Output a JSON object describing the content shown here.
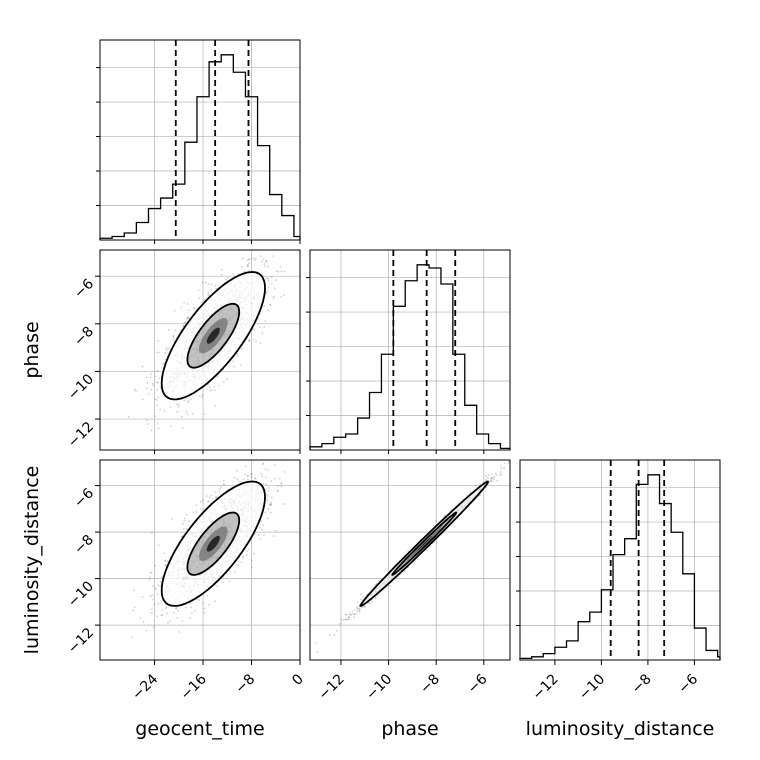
{
  "chart_data": {
    "type": "corner",
    "parameters": [
      "geocent_time",
      "phase",
      "luminosity_distance"
    ],
    "axis_labels": {
      "bottom": [
        "geocent_time",
        "phase",
        "luminosity_distance"
      ],
      "left": [
        "phase",
        "luminosity_distance"
      ]
    },
    "ranges": {
      "geocent_time": [
        -33,
        0
      ],
      "phase": [
        -13.3,
        -4.9
      ],
      "luminosity_distance": [
        -13.5,
        -4.9
      ]
    },
    "ticks": {
      "geocent_time": [
        -24,
        -16,
        -8,
        0
      ],
      "phase": [
        -12,
        -10,
        -8,
        -6
      ],
      "luminosity_distance": [
        -12,
        -10,
        -8,
        -6
      ]
    },
    "tick_labels": {
      "geocent_time": [
        "−24",
        "−16",
        "−8",
        "0"
      ],
      "phase": [
        "−12",
        "−10",
        "−8",
        "−6"
      ],
      "luminosity_distance": [
        "−12",
        "−10",
        "−8",
        "−6"
      ]
    },
    "grid": true,
    "histograms": [
      {
        "parameter": "geocent_time",
        "bins": [
          -33.0,
          -31.0,
          -29.0,
          -27.0,
          -25.0,
          -23.0,
          -21.0,
          -19.0,
          -17.0,
          -15.0,
          -13.0,
          -11.0,
          -9.0,
          -7.0,
          -5.0,
          -3.0,
          -1.0,
          0.0
        ],
        "counts": [
          0.5,
          1,
          2,
          5,
          9,
          12,
          16,
          28,
          41,
          51,
          53,
          48,
          41,
          27,
          13,
          7,
          1,
          0.5
        ],
        "quantile_lines": [
          -20.5,
          -14.0,
          -8.5
        ]
      },
      {
        "parameter": "phase",
        "bins": [
          -13.3,
          -12.8,
          -12.3,
          -11.8,
          -11.3,
          -10.8,
          -10.3,
          -9.8,
          -9.3,
          -8.8,
          -8.3,
          -7.8,
          -7.3,
          -6.8,
          -6.3,
          -5.8,
          -5.3
        ],
        "counts": [
          1,
          2,
          4,
          5,
          10,
          18,
          30,
          45,
          53,
          58,
          57,
          52,
          30,
          14,
          5,
          2,
          0.5
        ],
        "quantile_lines": [
          -9.8,
          -8.4,
          -7.2
        ]
      },
      {
        "parameter": "luminosity_distance",
        "bins": [
          -13.5,
          -13.0,
          -12.5,
          -12.0,
          -11.5,
          -11.0,
          -10.5,
          -10.0,
          -9.5,
          -9.0,
          -8.5,
          -8.0,
          -7.5,
          -7.0,
          -6.5,
          -6.0,
          -5.5,
          -5.0,
          -4.9
        ],
        "counts": [
          0.5,
          1,
          2,
          4,
          6,
          12,
          15,
          22,
          33,
          38,
          55,
          58,
          49,
          40,
          27,
          10,
          3,
          1
        ],
        "quantile_lines": [
          -9.6,
          -8.4,
          -7.3
        ]
      }
    ],
    "scatter_panels": [
      {
        "x": "geocent_time",
        "y": "phase",
        "correlation": 0.75,
        "mean": [
          -14.3,
          -8.5
        ],
        "sigma": [
          4.3,
          1.35
        ],
        "contour_levels": [
          0.39,
          0.86
        ]
      },
      {
        "x": "geocent_time",
        "y": "luminosity_distance",
        "correlation": 0.75,
        "mean": [
          -14.3,
          -8.5
        ],
        "sigma": [
          4.3,
          1.35
        ],
        "contour_levels": [
          0.39,
          0.86
        ]
      },
      {
        "x": "phase",
        "y": "luminosity_distance",
        "correlation": 0.995,
        "mean": [
          -8.5,
          -8.5
        ],
        "sigma": [
          1.35,
          1.35
        ],
        "contour_levels": [
          0.39,
          0.86
        ]
      }
    ],
    "colors": {
      "line": "#000000",
      "grid": "#b0b0b0",
      "points": "#000000",
      "density": "#555555"
    }
  }
}
